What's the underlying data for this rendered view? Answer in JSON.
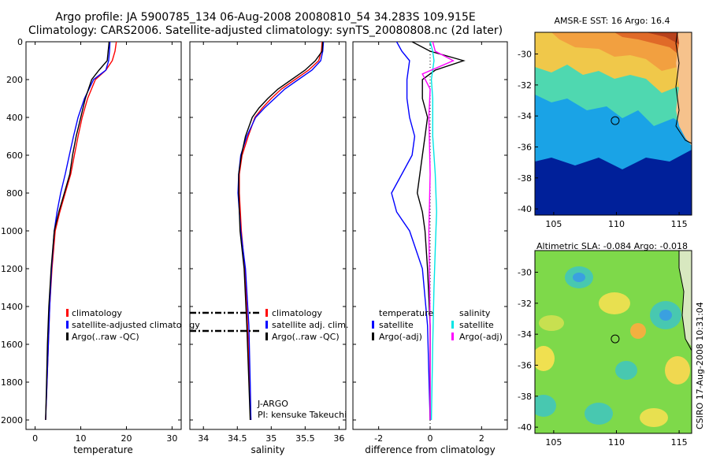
{
  "title": {
    "line1": "Argo profile: JA 5900785_134 06-Aug-2008 20080810_54 34.283S 109.915E",
    "line2": "Climatology: CARS2006. Satellite-adjusted climatology: synTS_20080808.nc (2d later)"
  },
  "colors": {
    "climatology": "#ff0000",
    "satellite": "#0000ff",
    "argo": "#000000",
    "sat_salinity": "#00e5e5",
    "argo_salinity": "#ff00ff"
  },
  "chart_data": [
    {
      "type": "line",
      "id": "temperature",
      "xlabel": "temperature",
      "ylim": [
        2050,
        0
      ],
      "xlim": [
        -2,
        32
      ],
      "xticks": [
        0,
        10,
        20,
        30
      ],
      "yticks": [
        0,
        200,
        400,
        600,
        800,
        1000,
        1200,
        1400,
        1600,
        1800,
        2000
      ],
      "legend": [
        "climatology",
        "satellite-adjusted climatology",
        "Argo(..raw -QC)"
      ],
      "series": [
        {
          "name": "climatology",
          "color": "#ff0000",
          "x": [
            17.8,
            17.5,
            16.9,
            15.5,
            13.2,
            11.5,
            10.3,
            9.4,
            8.6,
            7.8,
            6.6,
            5.4,
            4.4,
            3.7,
            3.2,
            2.9,
            2.6,
            2.3
          ],
          "y": [
            0,
            50,
            100,
            150,
            200,
            300,
            400,
            500,
            600,
            700,
            800,
            900,
            1000,
            1200,
            1400,
            1600,
            1800,
            2000
          ]
        },
        {
          "name": "satellite-adjusted climatology",
          "color": "#0000ff",
          "x": [
            16.4,
            16.3,
            16.1,
            15.5,
            12.8,
            10.8,
            9.4,
            8.4,
            7.5,
            6.6,
            5.6,
            4.8,
            4.2,
            3.6,
            3.2,
            2.9,
            2.6,
            2.3
          ],
          "y": [
            0,
            50,
            100,
            150,
            200,
            300,
            400,
            500,
            600,
            700,
            800,
            900,
            1000,
            1200,
            1400,
            1600,
            1800,
            2000
          ]
        },
        {
          "name": "Argo(..raw -QC)",
          "color": "#000000",
          "x": [
            16.2,
            16.0,
            15.8,
            14.0,
            12.4,
            11.0,
            10.0,
            9.0,
            8.2,
            7.6,
            6.4,
            5.2,
            4.2,
            3.5,
            3.0,
            2.7,
            2.5,
            2.3
          ],
          "y": [
            0,
            50,
            100,
            150,
            200,
            300,
            400,
            500,
            600,
            700,
            800,
            900,
            1000,
            1200,
            1400,
            1600,
            1800,
            2000
          ]
        }
      ]
    },
    {
      "type": "line",
      "id": "salinity",
      "xlabel": "salinity",
      "ylim": [
        2050,
        0
      ],
      "xlim": [
        33.8,
        36.1
      ],
      "xticks": [
        34,
        34.5,
        35,
        35.5,
        36
      ],
      "xticklabels": [
        "34",
        "34.5",
        "35",
        "35.5",
        "36"
      ],
      "legend": [
        "climatology",
        "satellite adj. clim.",
        "Argo(..raw -QC)"
      ],
      "annotation": [
        "J-ARGO",
        "PI: kensuke Takeuchi"
      ],
      "series": [
        {
          "name": "climatology",
          "color": "#ff0000",
          "x": [
            35.75,
            35.74,
            35.7,
            35.55,
            35.35,
            35.15,
            35.0,
            34.87,
            34.76,
            34.66,
            34.57,
            34.53,
            34.53,
            34.56,
            34.61,
            34.65,
            34.68,
            34.7
          ],
          "y": [
            0,
            50,
            100,
            150,
            200,
            250,
            300,
            350,
            400,
            500,
            600,
            700,
            800,
            1000,
            1200,
            1500,
            1800,
            2000
          ]
        },
        {
          "name": "satellite adj. clim.",
          "color": "#0000ff",
          "x": [
            35.77,
            35.76,
            35.73,
            35.6,
            35.4,
            35.2,
            35.05,
            34.9,
            34.77,
            34.64,
            34.55,
            34.52,
            34.51,
            34.55,
            34.62,
            34.67,
            34.69,
            34.7
          ],
          "y": [
            0,
            50,
            100,
            150,
            200,
            250,
            300,
            350,
            400,
            500,
            600,
            700,
            800,
            1000,
            1200,
            1500,
            1800,
            2000
          ]
        },
        {
          "name": "Argo(..raw -QC)",
          "color": "#000000",
          "x": [
            35.76,
            35.75,
            35.65,
            35.5,
            35.3,
            35.1,
            34.95,
            34.82,
            34.72,
            34.62,
            34.56,
            34.52,
            34.52,
            34.54,
            34.6,
            34.64,
            34.67,
            34.69
          ],
          "y": [
            0,
            50,
            100,
            150,
            200,
            250,
            300,
            350,
            400,
            500,
            600,
            700,
            800,
            1000,
            1200,
            1500,
            1800,
            2000
          ]
        }
      ]
    },
    {
      "type": "line",
      "id": "difference",
      "xlabel": "difference from climatology",
      "ylim": [
        2050,
        0
      ],
      "xlim": [
        -3.0,
        3.0
      ],
      "xticks": [
        -2,
        0,
        2
      ],
      "legend_temperature": [
        "temperature",
        "satellite",
        "Argo(-adj)"
      ],
      "legend_salinity": [
        "salinity",
        "satellite",
        "Argo(-adj)"
      ],
      "series": [
        {
          "name": "temperature satellite",
          "color": "#0000ff",
          "x": [
            -1.3,
            -1.1,
            -0.8,
            -0.9,
            -0.9,
            -0.8,
            -0.6,
            -0.7,
            -1.1,
            -1.5,
            -1.3,
            -0.8,
            -0.3,
            -0.1,
            0.0
          ],
          "y": [
            0,
            50,
            100,
            200,
            300,
            400,
            500,
            600,
            700,
            800,
            900,
            1000,
            1200,
            1500,
            2000
          ]
        },
        {
          "name": "temperature Argo(-adj)",
          "color": "#000000",
          "x": [
            -0.7,
            0.0,
            1.3,
            0.2,
            -0.3,
            -0.3,
            -0.1,
            -0.2,
            -0.3,
            -0.5,
            -0.3,
            -0.2,
            -0.1,
            0.0,
            0.0
          ],
          "y": [
            0,
            50,
            100,
            150,
            200,
            300,
            400,
            500,
            600,
            800,
            900,
            1000,
            1200,
            1500,
            2000
          ]
        },
        {
          "name": "salinity satellite",
          "color": "#00e5e5",
          "x": [
            0.0,
            0.1,
            0.15,
            0.05,
            0.1,
            0.1,
            0.2,
            0.25,
            0.2,
            0.15,
            0.1,
            0.05
          ],
          "y": [
            0,
            50,
            100,
            200,
            300,
            500,
            700,
            900,
            1100,
            1300,
            1600,
            2000
          ]
        },
        {
          "name": "salinity Argo(-adj)",
          "color": "#ff00ff",
          "x": [
            0.1,
            0.2,
            0.9,
            -0.3,
            0.0,
            -0.05,
            0.0,
            -0.05,
            0.0,
            0.0
          ],
          "y": [
            0,
            50,
            100,
            170,
            250,
            400,
            700,
            1000,
            1500,
            2000
          ]
        }
      ]
    },
    {
      "type": "heatmap",
      "id": "sst_map",
      "title": "AMSR-E SST: 16 Argo: 16.4",
      "xlim": [
        103.5,
        116
      ],
      "ylim": [
        -40.4,
        -28.6
      ],
      "xticks": [
        105,
        110,
        115
      ],
      "yticks": [
        -30,
        -32,
        -34,
        -36,
        -38,
        -40
      ],
      "marker": {
        "x": 109.9,
        "y": -34.3
      }
    },
    {
      "type": "heatmap",
      "id": "sla_map",
      "title": "Altimetric SLA: -0.084 Argo: -0.018",
      "xlim": [
        103.5,
        116
      ],
      "ylim": [
        -40.4,
        -28.6
      ],
      "xticks": [
        105,
        110,
        115
      ],
      "yticks": [
        -30,
        -32,
        -34,
        -36,
        -38,
        -40
      ],
      "marker": {
        "x": 109.9,
        "y": -34.3
      }
    }
  ],
  "credit": "CSIRO 17-Aug-2008 10:31:04"
}
